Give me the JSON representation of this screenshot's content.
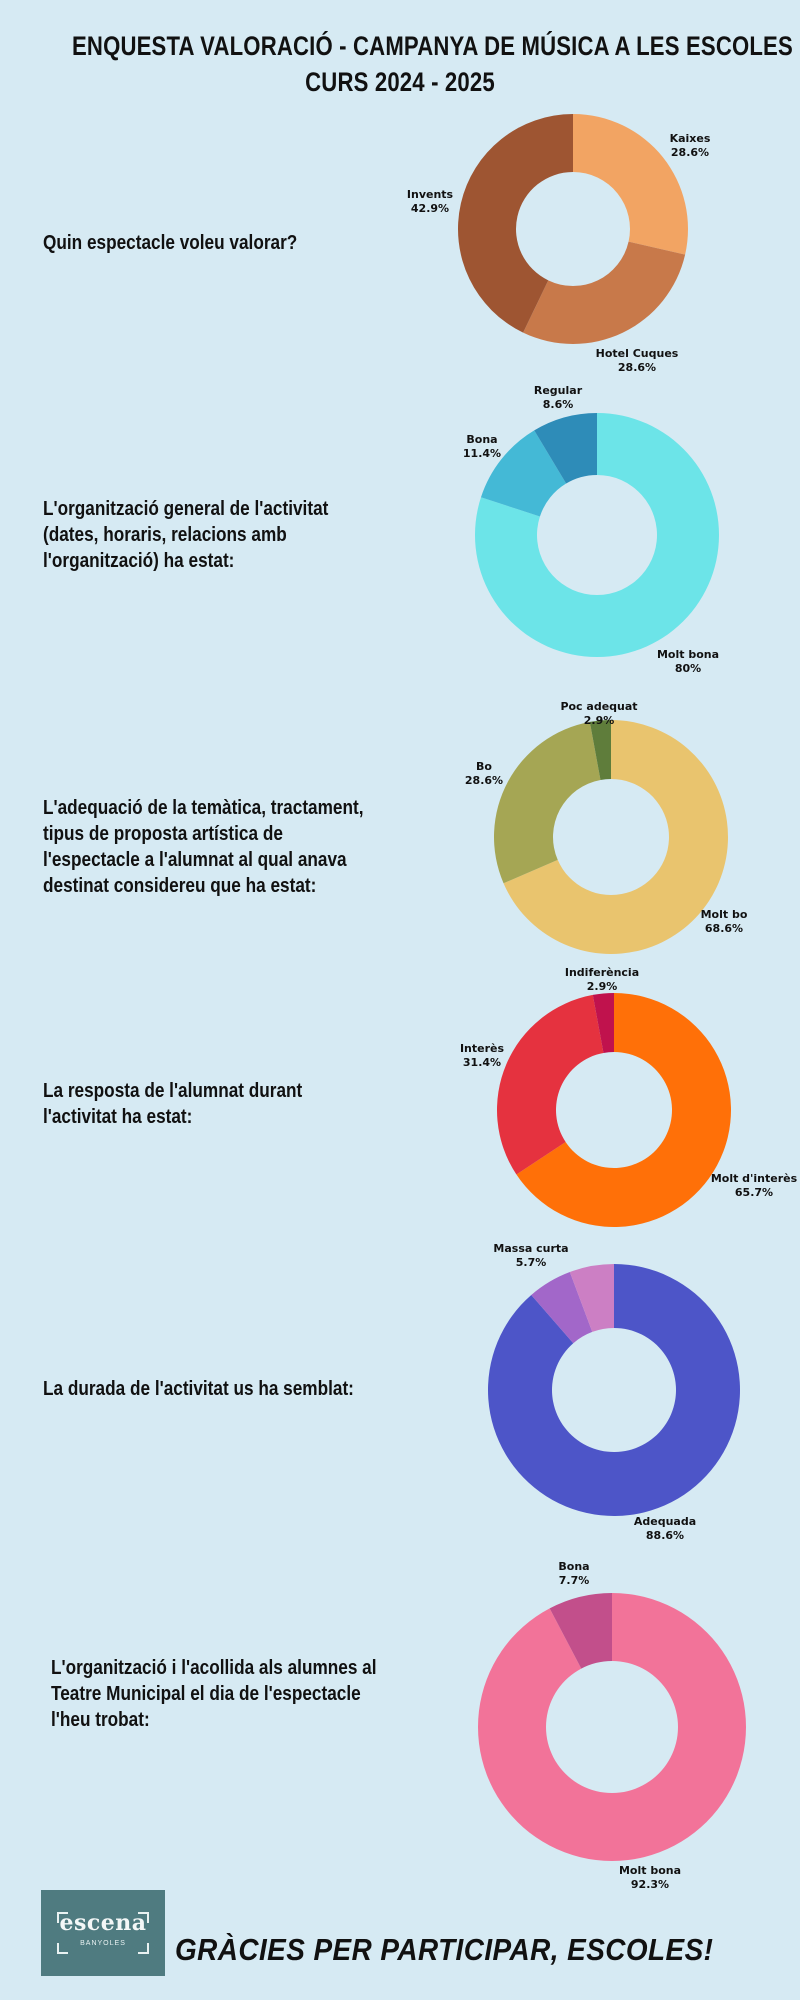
{
  "header": {
    "title_line1": "ENQUESTA VALORACIÓ - CAMPANYA DE MÚSICA A LES ESCOLES",
    "title_line2": "CURS 2024 - 2025"
  },
  "questions": [
    {
      "text": "Quin espectacle voleu valorar?"
    },
    {
      "text": "L'organització general de l'activitat (dates, horaris, relacions amb l'organització) ha estat:"
    },
    {
      "text": "L'adequació de la temàtica, tractament, tipus de proposta artística de l'espectacle a l'alumnat al qual anava destinat considereu que ha estat:"
    },
    {
      "text": "La resposta de l'alumnat durant l'activitat ha estat:"
    },
    {
      "text": "La durada de l'activitat us ha semblat:"
    },
    {
      "text": "L'organització i l'acollida als alumnes al Teatre Municipal el dia de l'espectacle l'heu trobat:"
    }
  ],
  "chart_data": [
    {
      "type": "pie",
      "categories": [
        "Kaixes",
        "Hotel Cuques",
        "Invents"
      ],
      "values": [
        28.6,
        28.6,
        42.9
      ],
      "labels": [
        "28.6%",
        "28.6%",
        "42.9%"
      ],
      "colors": [
        "#f2a463",
        "#c8794a",
        "#9e5532"
      ]
    },
    {
      "type": "pie",
      "categories": [
        "Molt bona",
        "Bona",
        "Regular"
      ],
      "values": [
        80,
        11.4,
        8.6
      ],
      "labels": [
        "80%",
        "11.4%",
        "8.6%"
      ],
      "colors": [
        "#6ce4e8",
        "#44b9d6",
        "#2e8cb8"
      ]
    },
    {
      "type": "pie",
      "categories": [
        "Molt bo",
        "Bo",
        "Poc adequat"
      ],
      "values": [
        68.6,
        28.6,
        2.9
      ],
      "labels": [
        "68.6%",
        "28.6%",
        "2.9%"
      ],
      "colors": [
        "#e9c46e",
        "#a5a654",
        "#5f7d3b"
      ]
    },
    {
      "type": "pie",
      "categories": [
        "Molt d'interès",
        "Interès",
        "Indiferència"
      ],
      "values": [
        65.7,
        31.4,
        2.9
      ],
      "labels": [
        "65.7%",
        "31.4%",
        "2.9%"
      ],
      "colors": [
        "#ff7008",
        "#e5323f",
        "#c0124d"
      ]
    },
    {
      "type": "pie",
      "categories": [
        "Adequada",
        "Massa curta",
        ""
      ],
      "values": [
        88.6,
        5.7,
        5.7
      ],
      "labels": [
        "88.6%",
        "5.7%",
        ""
      ],
      "colors": [
        "#4d55c8",
        "#a267c9",
        "#cc7fc4"
      ]
    },
    {
      "type": "pie",
      "categories": [
        "Molt bona",
        "Bona"
      ],
      "values": [
        92.3,
        7.7
      ],
      "labels": [
        "92.3%",
        "7.7%"
      ],
      "colors": [
        "#f27399",
        "#c24f8b"
      ]
    }
  ],
  "footer": {
    "logo_name": "escena",
    "logo_sub": "BANYOLES",
    "thanks": "GRÀCIES PER PARTICIPAR, ESCOLES!"
  }
}
